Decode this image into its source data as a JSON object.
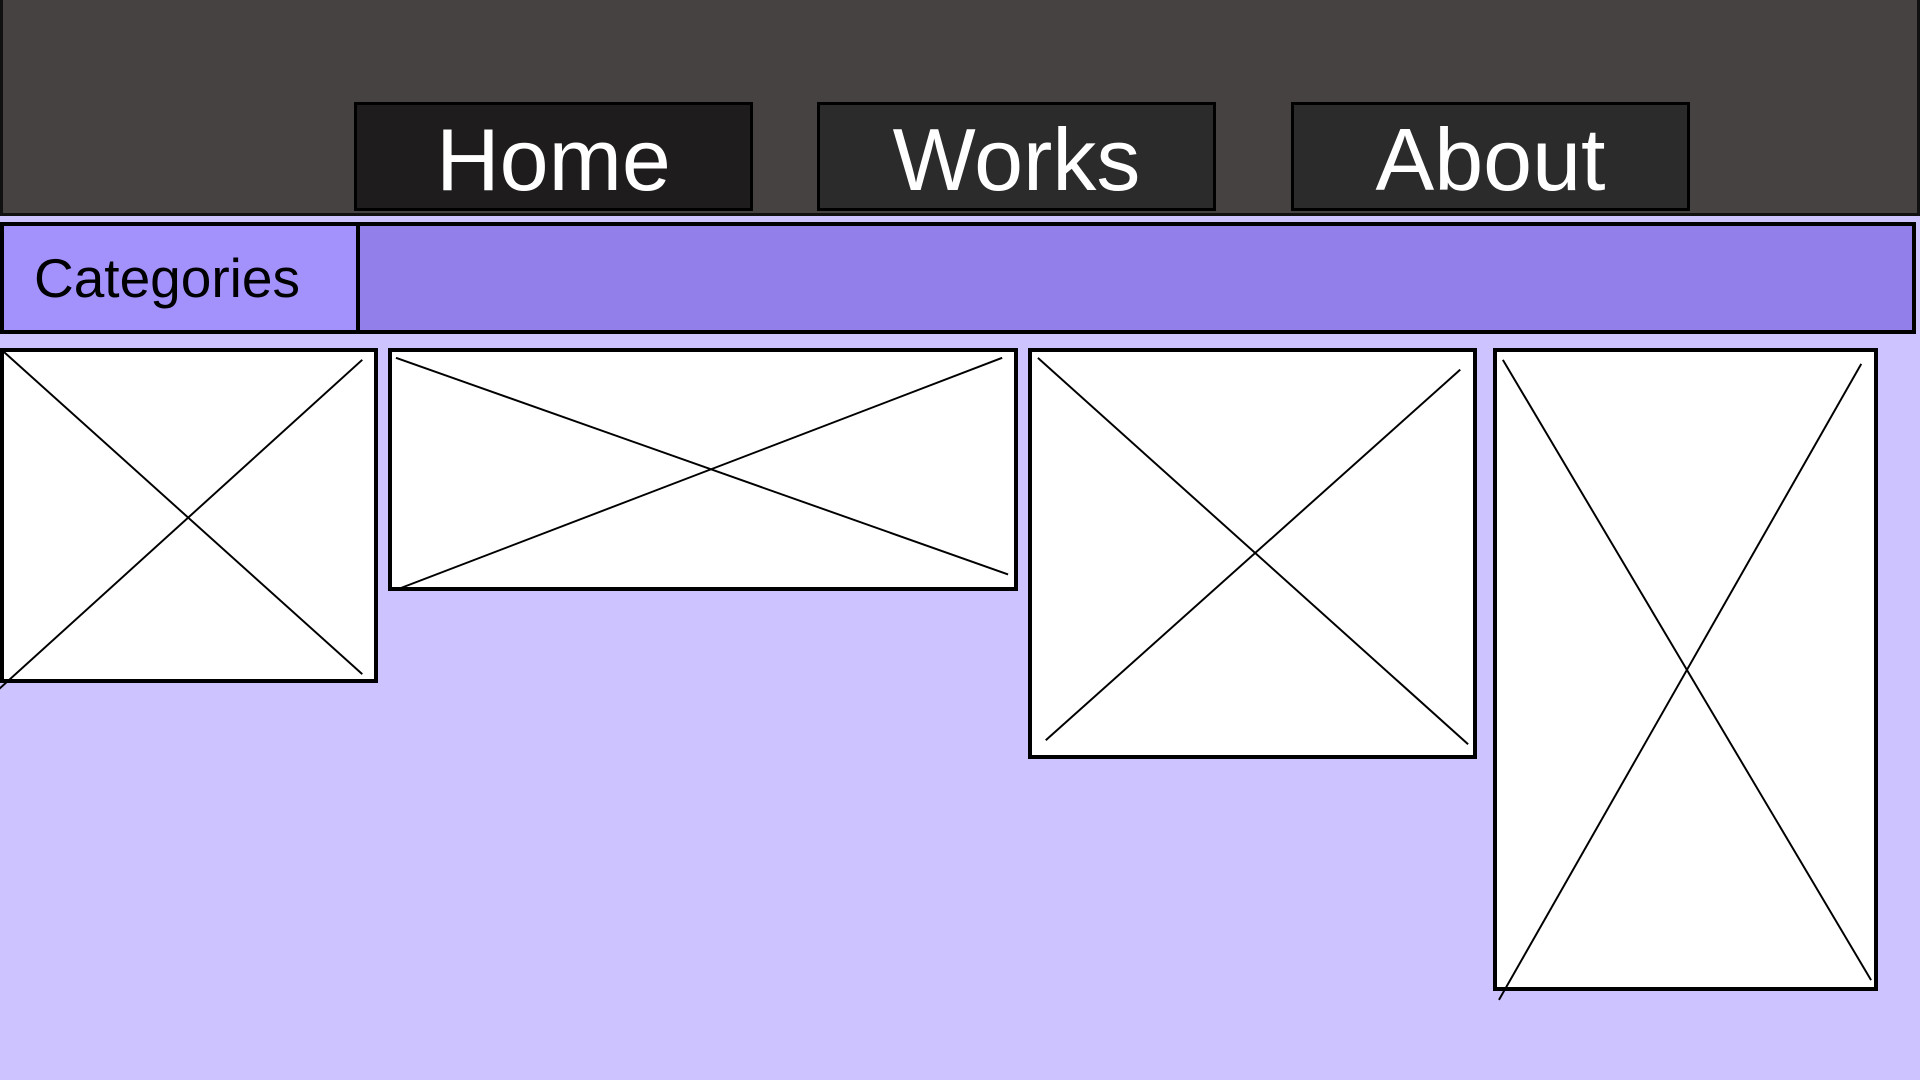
{
  "nav": {
    "home_label": "Home",
    "works_label": "Works",
    "about_label": "About"
  },
  "category_bar": {
    "categories_label": "Categories"
  },
  "colors": {
    "header_background": "#454241",
    "nav_home_background": "#1e1c1c",
    "nav_button_background": "#2c2b2b",
    "category_bar_background": "#937fea",
    "categories_button_background": "#a392fc",
    "page_background": "#cdc4ff"
  },
  "gallery": {
    "items": [
      {
        "icon": "image-placeholder-icon"
      },
      {
        "icon": "image-placeholder-icon"
      },
      {
        "icon": "image-placeholder-icon"
      },
      {
        "icon": "image-placeholder-icon"
      }
    ]
  }
}
